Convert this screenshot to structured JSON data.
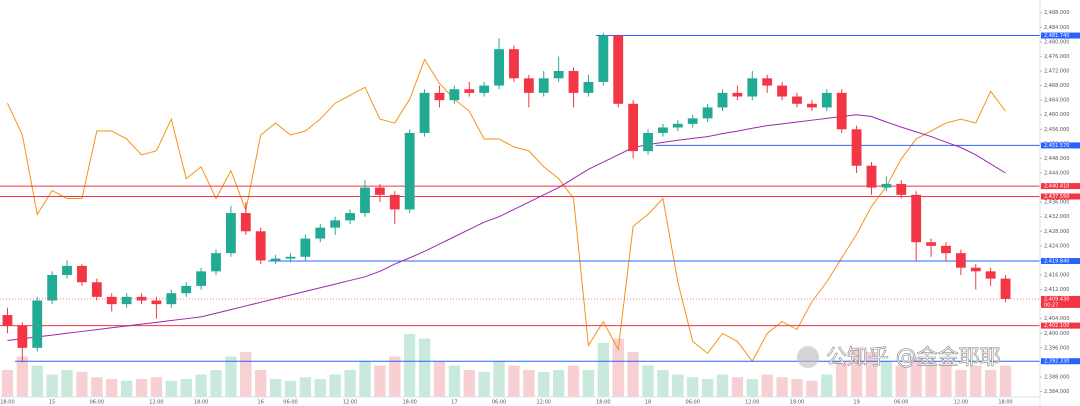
{
  "chart_data": {
    "type": "candlestick",
    "categories": [
      "18:00",
      null,
      null,
      "15",
      null,
      null,
      "06:00",
      null,
      null,
      null,
      "12:00",
      null,
      null,
      "18:00",
      null,
      null,
      null,
      "16",
      null,
      "06:00",
      null,
      null,
      null,
      "12:00",
      null,
      null,
      null,
      "18:00",
      null,
      null,
      "17",
      null,
      null,
      "06:00",
      null,
      null,
      "12:00",
      null,
      null,
      null,
      "18:00",
      null,
      null,
      "18",
      null,
      null,
      "06:00",
      null,
      null,
      null,
      "12:00",
      null,
      null,
      "18:00",
      null,
      null,
      null,
      "19",
      null,
      null,
      "06:00",
      null,
      null,
      null,
      "12:00",
      null,
      null,
      "18:00"
    ],
    "open": [
      2405,
      2402,
      2396,
      2409,
      2416,
      2418.5,
      2414,
      2410,
      2408,
      2410,
      2409,
      2408,
      2411,
      2413,
      2417,
      2422,
      2433,
      2428,
      2420,
      2420.5,
      2421,
      2426,
      2429,
      2431,
      2433,
      2440,
      2438,
      2434,
      2455,
      2466,
      2464,
      2467,
      2466,
      2468,
      2478,
      2470,
      2466,
      2470,
      2472,
      2466,
      2469,
      2481.74,
      2463,
      2450,
      2455,
      2456.5,
      2457.5,
      2459,
      2462,
      2466,
      2465,
      2470,
      2468,
      2465,
      2463,
      2462,
      2466,
      2456,
      2446,
      2440,
      2441,
      2438,
      2425,
      2424,
      2422,
      2418,
      2417,
      2415
    ],
    "high": [
      2407,
      2403,
      2410,
      2417,
      2420,
      2419,
      2415,
      2411,
      2411,
      2411,
      2410,
      2412,
      2414,
      2418,
      2423,
      2435,
      2436,
      2429,
      2421.5,
      2422,
      2427,
      2430,
      2432,
      2434,
      2442,
      2441,
      2439,
      2456,
      2467,
      2468,
      2468,
      2469,
      2469,
      2481,
      2479,
      2471,
      2472,
      2476,
      2473,
      2471,
      2482.5,
      2482,
      2464,
      2456,
      2457.5,
      2458.5,
      2460,
      2463,
      2467,
      2468,
      2472,
      2471,
      2469,
      2466,
      2464,
      2467,
      2467,
      2457,
      2447,
      2443,
      2442,
      2439,
      2426,
      2425,
      2423,
      2419,
      2418,
      2416
    ],
    "low": [
      2400,
      2392,
      2395,
      2408,
      2415,
      2413,
      2409,
      2406,
      2407,
      2408,
      2404,
      2407,
      2410,
      2412,
      2416,
      2421,
      2427,
      2419,
      2419,
      2419.5,
      2420,
      2425,
      2427,
      2430,
      2432,
      2436,
      2430,
      2433,
      2454,
      2462,
      2463,
      2465,
      2465,
      2467,
      2469,
      2462,
      2465,
      2469,
      2462,
      2465,
      2468,
      2462,
      2448,
      2449,
      2454,
      2455.5,
      2456.5,
      2458,
      2461,
      2464,
      2464,
      2466,
      2464,
      2462,
      2461,
      2461,
      2455,
      2444,
      2438,
      2439,
      2437,
      2420,
      2421,
      2420,
      2416,
      2412,
      2413,
      2408.5
    ],
    "close": [
      2402,
      2396,
      2409,
      2416,
      2418.5,
      2414,
      2410,
      2408,
      2410,
      2409,
      2408,
      2411,
      2413,
      2417,
      2422,
      2433,
      2428,
      2420,
      2420.5,
      2421,
      2426,
      2429,
      2431,
      2433,
      2440,
      2438,
      2434,
      2455,
      2466,
      2464,
      2467,
      2466,
      2468,
      2478,
      2470,
      2466,
      2470,
      2472,
      2466,
      2469,
      2481.74,
      2463,
      2450,
      2455,
      2456.5,
      2457.5,
      2459,
      2462,
      2466,
      2465,
      2470,
      2468,
      2465,
      2463,
      2462,
      2466,
      2456,
      2446,
      2440,
      2441,
      2438,
      2425,
      2424,
      2422,
      2418,
      2417,
      2415,
      2409.43
    ],
    "up_color": "#22ab94",
    "down_color": "#f23645",
    "volume": {
      "lim": [
        0,
        100
      ],
      "up_color": "#c8e9dc",
      "down_color": "#f6d0d3",
      "values": [
        30,
        45,
        35,
        25,
        30,
        28,
        22,
        20,
        18,
        20,
        22,
        18,
        20,
        25,
        30,
        45,
        50,
        30,
        20,
        18,
        22,
        20,
        25,
        30,
        40,
        35,
        45,
        70,
        65,
        40,
        35,
        30,
        28,
        40,
        35,
        30,
        28,
        30,
        35,
        30,
        60,
        65,
        50,
        35,
        30,
        25,
        22,
        20,
        25,
        22,
        20,
        25,
        22,
        20,
        18,
        25,
        40,
        55,
        50,
        40,
        35,
        45,
        40,
        35,
        30,
        35,
        30,
        35
      ]
    },
    "ma": {
      "color": "#9c27b0",
      "values": [
        2398,
        2398.5,
        2399,
        2399.5,
        2400,
        2400.5,
        2401,
        2401.5,
        2402,
        2402.5,
        2403,
        2403.5,
        2404,
        2404.5,
        2405.5,
        2406.5,
        2407.5,
        2408.5,
        2409.5,
        2410.5,
        2411.5,
        2412.5,
        2413.5,
        2414.5,
        2415.5,
        2417,
        2419,
        2420.7,
        2422.5,
        2424.5,
        2426.5,
        2428.5,
        2430.5,
        2432,
        2434,
        2436,
        2438,
        2440,
        2442.5,
        2445,
        2447,
        2449,
        2451,
        2451.8,
        2452.4,
        2453,
        2453.5,
        2454,
        2454.8,
        2455.5,
        2456.3,
        2457,
        2457.5,
        2458,
        2458.5,
        2459,
        2459.5,
        2460,
        2459.5,
        2458,
        2456.6,
        2455.3,
        2454,
        2452.5,
        2451,
        2449,
        2446.5,
        2444
      ]
    },
    "oscillator": {
      "color": "#f7931a",
      "lim": [
        0,
        100
      ],
      "values": [
        74,
        66,
        46,
        52,
        50,
        50,
        67,
        67,
        65,
        61,
        62,
        70,
        55,
        58,
        50,
        57,
        47,
        66,
        69,
        66,
        67,
        70,
        74,
        76,
        78,
        70,
        69,
        75,
        85,
        79,
        75,
        72,
        65,
        65,
        63,
        62,
        58,
        55,
        50,
        13,
        19,
        12,
        43,
        46,
        50,
        29,
        14,
        11,
        16,
        14,
        9,
        16,
        19,
        17,
        24,
        29,
        35,
        41,
        48,
        53,
        60,
        65,
        67,
        69,
        70,
        69,
        77,
        72
      ]
    },
    "levels": [
      {
        "value": 2481.74,
        "label": "2,481.740",
        "color": "#2962ff",
        "from": 40
      },
      {
        "value": 2451.57,
        "label": "2,451.570",
        "color": "#2962ff",
        "from": 44
      },
      {
        "value": 2440.41,
        "label": "2,440.410",
        "color": "#f23645",
        "from": 0
      },
      {
        "value": 2437.55,
        "label": "2,437.550",
        "color": "#f23645",
        "from": 0
      },
      {
        "value": 2419.84,
        "label": "2,419.840",
        "color": "#2962ff",
        "from": 18
      },
      {
        "value": 2402.1,
        "label": "2,402.100",
        "color": "#f23645",
        "from": 0
      },
      {
        "value": 2392.33,
        "label": "2,392.330",
        "color": "#2962ff",
        "from": 1
      }
    ],
    "last": {
      "value": 2409.43,
      "label": "2,409.430",
      "countdown": "00:27",
      "color": "#f23645"
    },
    "ylim": [
      2382.5,
      2491.5
    ],
    "yticks": [
      {
        "value": 2384,
        "label": "2,384.000"
      },
      {
        "value": 2388,
        "label": "2,388.000"
      },
      {
        "value": 2392,
        "label": "2,392.000"
      },
      {
        "value": 2396,
        "label": "2,396.000"
      },
      {
        "value": 2400,
        "label": "2,400.000"
      },
      {
        "value": 2404,
        "label": "2,404.000"
      },
      {
        "value": 2408,
        "label": "2,408.000"
      },
      {
        "value": 2412,
        "label": "2,412.000"
      },
      {
        "value": 2416,
        "label": "2,416.000"
      },
      {
        "value": 2420,
        "label": "2,420.000"
      },
      {
        "value": 2424,
        "label": "2,424.000"
      },
      {
        "value": 2428,
        "label": "2,428.000"
      },
      {
        "value": 2432,
        "label": "2,432.000"
      },
      {
        "value": 2436,
        "label": "2,436.000"
      },
      {
        "value": 2440,
        "label": "2,440.000"
      },
      {
        "value": 2444,
        "label": "2,444.000"
      },
      {
        "value": 2448,
        "label": "2,448.000"
      },
      {
        "value": 2452,
        "label": "2,452.000"
      },
      {
        "value": 2456,
        "label": "2,456.000"
      },
      {
        "value": 2460,
        "label": "2,460.000"
      },
      {
        "value": 2464,
        "label": "2,464.000"
      },
      {
        "value": 2468,
        "label": "2,468.000"
      },
      {
        "value": 2472,
        "label": "2,472.000"
      },
      {
        "value": 2476,
        "label": "2,476.000"
      },
      {
        "value": 2480,
        "label": "2,480.000"
      },
      {
        "value": 2484,
        "label": "2,484.000"
      },
      {
        "value": 2488,
        "label": "2,488.000"
      }
    ],
    "watermark": "公知乎 @金金耶耶"
  }
}
